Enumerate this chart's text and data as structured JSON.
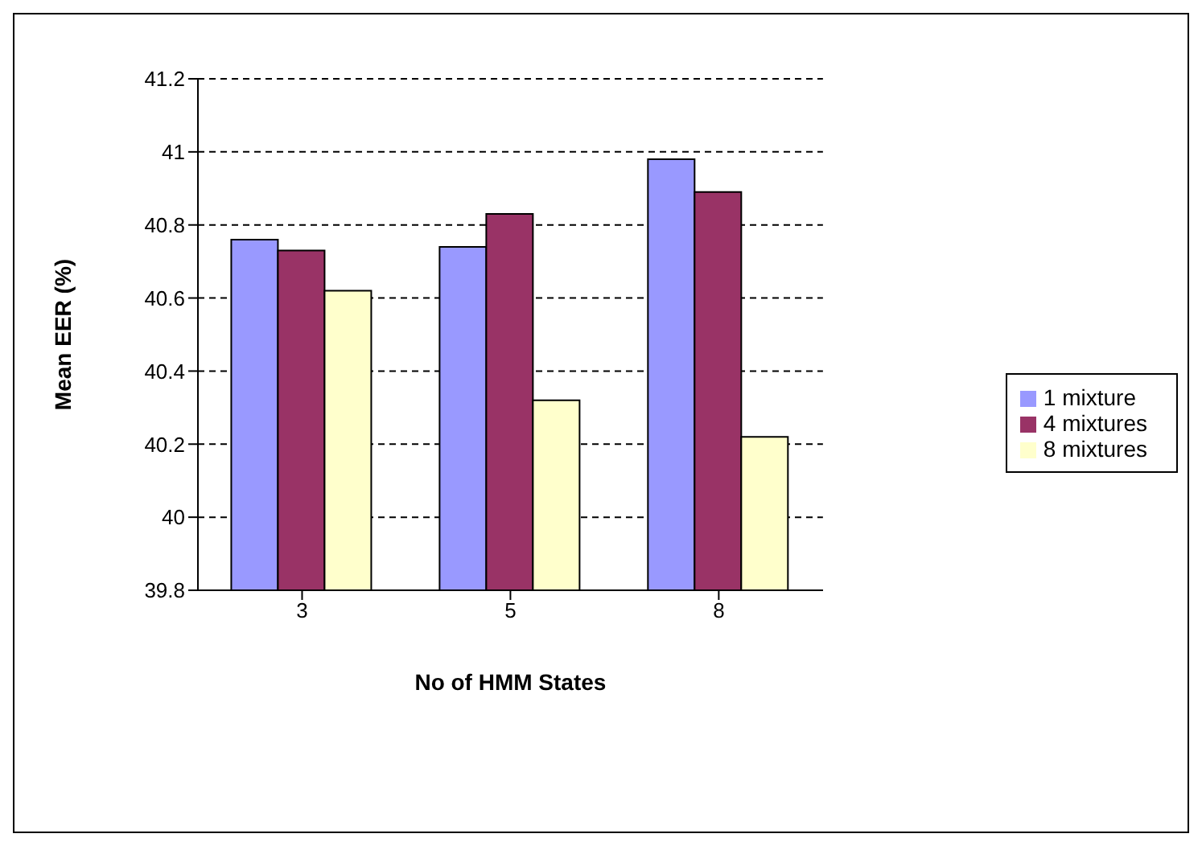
{
  "chart_data": {
    "type": "bar",
    "xlabel": "No of HMM States",
    "ylabel": "Mean EER (%)",
    "categories": [
      "3",
      "5",
      "8"
    ],
    "series": [
      {
        "name": "1 mixture",
        "color": "#9999ff",
        "values": [
          40.76,
          40.74,
          40.98
        ]
      },
      {
        "name": "4 mixtures",
        "color": "#993366",
        "values": [
          40.73,
          40.83,
          40.89
        ]
      },
      {
        "name": "8 mixtures",
        "color": "#ffffcc",
        "values": [
          40.62,
          40.32,
          40.22
        ]
      }
    ],
    "ylim": [
      39.8,
      41.2
    ],
    "yticks": [
      39.8,
      40,
      40.2,
      40.4,
      40.6,
      40.8,
      41,
      41.2
    ],
    "grid": "y",
    "legend": "right"
  }
}
